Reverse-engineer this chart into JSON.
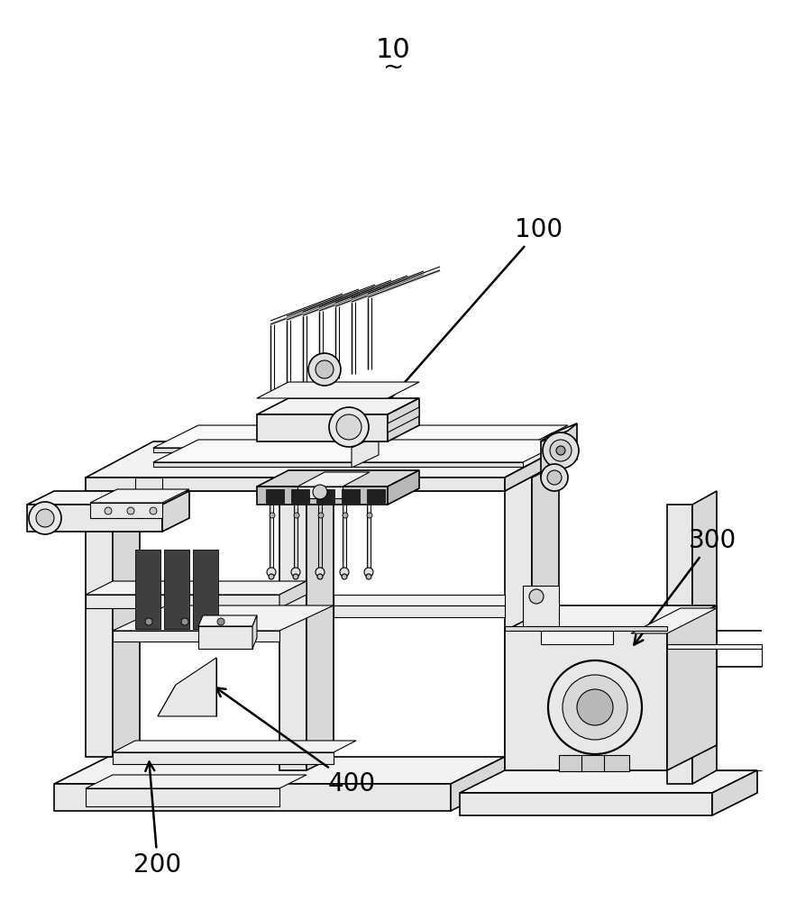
{
  "bg_color": "#ffffff",
  "line_color": "#000000",
  "label_10": "10",
  "label_100": "100",
  "label_200": "200",
  "label_300": "300",
  "label_400": "400",
  "figsize": [
    8.73,
    10.0
  ],
  "dpi": 100,
  "annotation_fontsize": 20,
  "tilde_str": "~"
}
